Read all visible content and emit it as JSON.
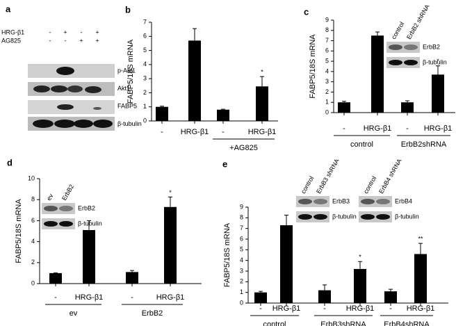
{
  "blot": {
    "label": "a",
    "conditions": [
      {
        "name": "HRG-β1",
        "signs": [
          "-",
          "+",
          "-",
          "+"
        ]
      },
      {
        "name": "AG825",
        "signs": [
          "-",
          "-",
          "+",
          "+"
        ]
      }
    ],
    "rows": [
      "p-Akt1",
      "Akt1",
      "FABP5",
      "β-tubulin"
    ]
  },
  "chart_data": [
    {
      "type": "bar",
      "label": "b",
      "y_label": "FABP5/18S mRNA",
      "categories": [
        "-",
        "HRG-β1",
        "-",
        "HRG-β1"
      ],
      "group_labels": [
        null,
        "+AG825"
      ],
      "values": [
        1.0,
        5.7,
        0.8,
        2.45
      ],
      "errors": [
        0.05,
        0.85,
        0.03,
        0.7
      ],
      "value_annotations": [
        null,
        null,
        null,
        "*"
      ],
      "color": "#000000",
      "ylim": [
        0,
        7
      ],
      "yticks": [
        0,
        1,
        2,
        3,
        4,
        5,
        6,
        7
      ]
    },
    {
      "type": "bar",
      "label": "c",
      "y_label": "FABP5/18S mRNA",
      "categories": [
        "-",
        "HRG-β1",
        "-",
        "HRG-β1"
      ],
      "group_labels": [
        "control",
        "ErbB2shRNA"
      ],
      "values": [
        1.0,
        7.5,
        1.0,
        3.7
      ],
      "errors": [
        0.1,
        0.35,
        0.15,
        0.85
      ],
      "value_annotations": [
        null,
        null,
        null,
        "*"
      ],
      "color": "#000000",
      "ylim": [
        0,
        9
      ],
      "yticks": [
        0,
        1,
        2,
        3,
        4,
        5,
        6,
        7,
        8,
        9
      ],
      "insets": [
        {
          "columns": [
            "control",
            "ErbB2 shRNA"
          ],
          "rows": [
            "ErbB2",
            "β-tubulin"
          ]
        }
      ]
    },
    {
      "type": "bar",
      "label": "d",
      "y_label": "FABP5/18S mRNA",
      "categories": [
        "-",
        "HRG-β1",
        "-",
        "HRG-β1"
      ],
      "group_labels": [
        "ev",
        "ErbB2"
      ],
      "values": [
        1.0,
        5.1,
        1.1,
        7.3
      ],
      "errors": [
        0.02,
        0.9,
        0.15,
        0.95
      ],
      "value_annotations": [
        null,
        null,
        null,
        "*"
      ],
      "color": "#000000",
      "ylim": [
        0,
        10
      ],
      "yticks": [
        0,
        2,
        4,
        6,
        8,
        10
      ],
      "insets": [
        {
          "columns": [
            "ev",
            "ErbB2"
          ],
          "rows": [
            "ErbB2",
            "β-tubulin"
          ]
        }
      ]
    },
    {
      "type": "bar",
      "label": "e",
      "y_label": "FABP5/18S mRNA",
      "categories": [
        "-",
        "HRG-β1",
        "-",
        "HRG-β1",
        "-",
        "HRG-β1"
      ],
      "group_labels": [
        "control",
        "ErbB3shRNA",
        "ErbB4shRNA"
      ],
      "values": [
        1.0,
        7.3,
        1.2,
        3.2,
        1.1,
        4.6
      ],
      "errors": [
        0.1,
        0.95,
        0.5,
        0.7,
        0.2,
        1.0
      ],
      "value_annotations": [
        null,
        null,
        null,
        "*",
        null,
        "**"
      ],
      "color": "#000000",
      "ylim": [
        0,
        9
      ],
      "yticks": [
        0,
        1,
        2,
        3,
        4,
        5,
        6,
        7,
        8,
        9
      ],
      "insets": [
        {
          "columns": [
            "control",
            "ErbB3 shRNA"
          ],
          "rows": [
            "ErbB3",
            "β-tubulin"
          ]
        },
        {
          "columns": [
            "control",
            "ErbB4 shRNA"
          ],
          "rows": [
            "ErbB4",
            "β-tubulin"
          ]
        }
      ]
    }
  ]
}
